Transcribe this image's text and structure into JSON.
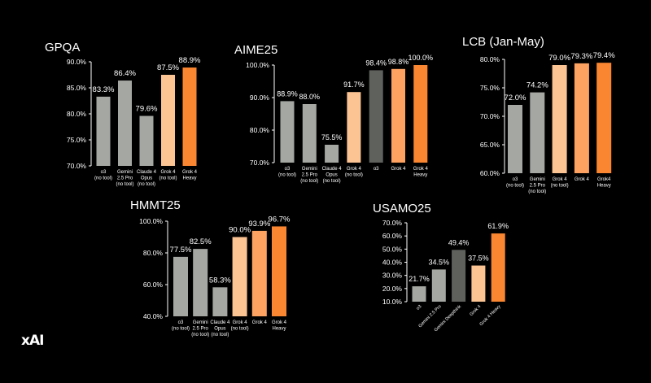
{
  "colors": {
    "background": "#000000",
    "text": "#ffffff",
    "axis": "#ffffff",
    "gray_light": "#a4a7a2",
    "gray_dark": "#5f615d",
    "orange_light": "#fcc393",
    "orange_mid": "#fda261",
    "orange_bright": "#fb8631"
  },
  "logo": "xAI",
  "chart_data": [
    {
      "type": "bar",
      "title": "GPQA",
      "ylim": [
        70,
        90
      ],
      "yticks": [
        "70.0%",
        "75.0%",
        "80.0%",
        "85.0%",
        "90.0%"
      ],
      "categories": [
        [
          "o3",
          "(no tool)"
        ],
        [
          "Gemini",
          "2.5 Pro",
          "(no tool)"
        ],
        [
          "Claude 4",
          "Opus",
          "(no tool)"
        ],
        [
          "Grok 4",
          "(no tool)"
        ],
        [
          "Grok 4",
          "Heavy"
        ]
      ],
      "values": [
        83.3,
        86.4,
        79.6,
        87.5,
        88.9
      ],
      "value_labels": [
        "83.3%",
        "86.4%",
        "79.6%",
        "87.5%",
        "88.9%"
      ],
      "bar_colors": [
        "gray_light",
        "gray_light",
        "gray_light",
        "orange_light",
        "orange_bright"
      ],
      "grid": false,
      "legend": "none"
    },
    {
      "type": "bar",
      "title": "AIME25",
      "ylim": [
        70,
        100
      ],
      "yticks": [
        "70.0%",
        "80.0%",
        "90.0%",
        "100.0%"
      ],
      "categories": [
        [
          "o3",
          "(no tool)"
        ],
        [
          "Gemini",
          "2.5 Pro",
          "(no tool)"
        ],
        [
          "Claude 4",
          "Opus",
          "(no tool)"
        ],
        [
          "Grok 4",
          "(no tool)"
        ],
        [
          "o3"
        ],
        [
          "Grok 4"
        ],
        [
          "Grok 4",
          "Heavy"
        ]
      ],
      "values": [
        88.9,
        88.0,
        75.5,
        91.7,
        98.4,
        98.8,
        100.0
      ],
      "value_labels": [
        "88.9%",
        "88.0%",
        "75.5%",
        "91.7%",
        "98.4%",
        "98.8%",
        "100.0%"
      ],
      "bar_colors": [
        "gray_light",
        "gray_light",
        "gray_light",
        "orange_light",
        "gray_dark",
        "orange_mid",
        "orange_bright"
      ],
      "grid": false,
      "legend": "none"
    },
    {
      "type": "bar",
      "title": "LCB (Jan-May)",
      "ylim": [
        60,
        80
      ],
      "yticks": [
        "60.0%",
        "65.0%",
        "70.0%",
        "75.0%",
        "80.0%"
      ],
      "categories": [
        [
          "o3",
          "(no tool)"
        ],
        [
          "Gemini",
          "2.5 Pro",
          "(no tool)"
        ],
        [
          "Grok 4",
          "(no tool)"
        ],
        [
          "Grok 4"
        ],
        [
          "Grok4",
          "Heavy"
        ]
      ],
      "values": [
        72.0,
        74.2,
        79.0,
        79.3,
        79.4
      ],
      "value_labels": [
        "72.0%",
        "74.2%",
        "79.0%",
        "79.3%",
        "79.4%"
      ],
      "bar_colors": [
        "gray_light",
        "gray_light",
        "orange_light",
        "orange_mid",
        "orange_bright"
      ],
      "grid": false,
      "legend": "none"
    },
    {
      "type": "bar",
      "title": "HMMT25",
      "ylim": [
        40,
        100
      ],
      "yticks": [
        "40.0%",
        "60.0%",
        "80.0%",
        "100.0%"
      ],
      "categories": [
        [
          "o3",
          "(no tool)"
        ],
        [
          "Gemini",
          "2.5 Pro",
          "(no tool)"
        ],
        [
          "Claude 4",
          "Opus",
          "(no tool)"
        ],
        [
          "Grok 4",
          "(no tool)"
        ],
        [
          "Grok 4"
        ],
        [
          "Grok 4",
          "Heavy"
        ]
      ],
      "values": [
        77.5,
        82.5,
        58.3,
        90.0,
        93.9,
        96.7
      ],
      "value_labels": [
        "77.5%",
        "82.5%",
        "58.3%",
        "90.0%",
        "93.9%",
        "96.7%"
      ],
      "bar_colors": [
        "gray_light",
        "gray_light",
        "gray_light",
        "orange_light",
        "orange_mid",
        "orange_bright"
      ],
      "grid": false,
      "legend": "none"
    },
    {
      "type": "bar",
      "title": "USAMO25",
      "ylim": [
        10,
        70
      ],
      "yticks": [
        "10.0%",
        "20.0%",
        "30.0%",
        "40.0%",
        "50.0%",
        "60.0%",
        "70.0%"
      ],
      "categories": [
        [
          "o3"
        ],
        [
          "Gemini 2.5 Pro"
        ],
        [
          "Gemini Deepthink"
        ],
        [
          "Grok 4"
        ],
        [
          "Grok 4 Heavy"
        ]
      ],
      "values": [
        21.7,
        34.5,
        49.4,
        37.5,
        61.9
      ],
      "value_labels": [
        "21.7%",
        "34.5%",
        "49.4%",
        "37.5%",
        "61.9%"
      ],
      "bar_colors": [
        "gray_light",
        "gray_light",
        "gray_dark",
        "orange_light",
        "orange_bright"
      ],
      "rotated_labels": true,
      "grid": false,
      "legend": "none"
    }
  ]
}
